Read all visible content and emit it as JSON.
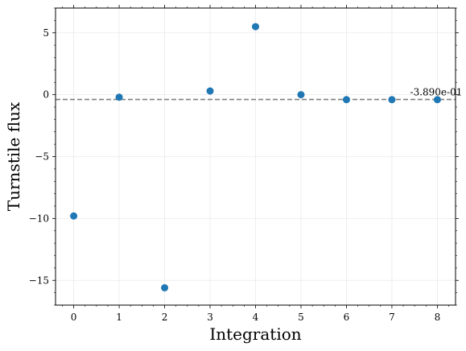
{
  "chart_data": {
    "type": "scatter",
    "xlabel": "Integration",
    "ylabel": "Turnstile flux",
    "xlim": [
      -0.4,
      8.4
    ],
    "ylim": [
      -17,
      7
    ],
    "xticks": [
      0,
      1,
      2,
      3,
      4,
      5,
      6,
      7,
      8
    ],
    "yticks": [
      -15,
      -10,
      -5,
      0,
      5
    ],
    "ytick_labels": [
      "−15",
      "−10",
      "−5",
      "0",
      "5"
    ],
    "grid": true,
    "series": [
      {
        "x": [
          0,
          1,
          2,
          3,
          4,
          5,
          6,
          7,
          8
        ],
        "y": [
          -9.8,
          -0.2,
          -15.6,
          0.3,
          5.5,
          0.0,
          -0.4,
          -0.4,
          -0.4
        ],
        "color": "#1f77b4",
        "marker": "circle"
      }
    ],
    "reference_line": {
      "y": -0.389,
      "style": "dashed",
      "color": "#808080",
      "label": "-3.890e-01"
    }
  }
}
